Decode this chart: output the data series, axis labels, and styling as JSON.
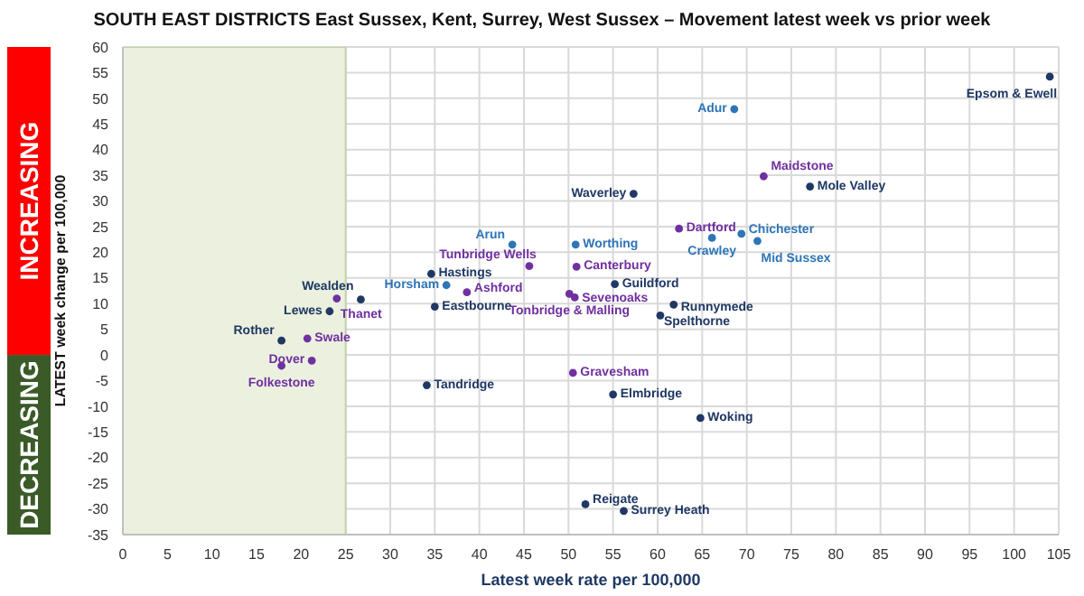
{
  "chart_data": {
    "type": "scatter",
    "title": "SOUTH EAST DISTRICTS East Sussex, Kent, Surrey, West Sussex – Movement latest week vs prior week",
    "xlabel": "Latest week rate per 100,000",
    "ylabel": "LATEST week change per 100,000",
    "xlim": [
      0,
      105
    ],
    "xticks": [
      0,
      5,
      10,
      15,
      20,
      25,
      30,
      35,
      40,
      45,
      50,
      55,
      60,
      65,
      70,
      75,
      80,
      85,
      90,
      95,
      100,
      105
    ],
    "ylim": [
      -35,
      60
    ],
    "yticks": [
      -35,
      -30,
      -25,
      -20,
      -15,
      -10,
      -5,
      0,
      5,
      10,
      15,
      20,
      25,
      30,
      35,
      40,
      45,
      50,
      55,
      60
    ],
    "grid": true,
    "marker": "circle",
    "bands": [
      {
        "axis": "x",
        "from": 0,
        "to": 25,
        "color": "#ebf1de"
      }
    ],
    "series": [
      {
        "color": "#1f3864",
        "x": [
          34.6,
          35.0,
          26.7,
          23.2,
          17.8
        ],
        "values": [
          15.8,
          9.4,
          10.8,
          8.5,
          2.8
        ]
      },
      {
        "color": "#7030a0",
        "x": [
          71.9,
          62.4,
          45.6,
          50.9,
          38.6,
          50.7,
          50.1,
          24.0,
          20.7,
          21.2,
          17.8,
          50.5
        ],
        "values": [
          34.8,
          24.6,
          17.3,
          17.2,
          12.2,
          11.2,
          11.9,
          11.0,
          3.2,
          -1.1,
          -2.1,
          -3.5
        ]
      },
      {
        "color": "#1f3864",
        "x": [
          104.0,
          77.1,
          57.3,
          55.2,
          61.8,
          60.3,
          34.1,
          55.0,
          64.8,
          51.9,
          56.2
        ],
        "values": [
          54.2,
          32.8,
          31.4,
          13.8,
          9.8,
          7.7,
          -5.9,
          -7.7,
          -12.3,
          -29.1,
          -30.4
        ]
      },
      {
        "color": "#2e75b6",
        "x": [
          68.6,
          69.4,
          66.1,
          71.2,
          43.7,
          50.8,
          36.3
        ],
        "values": [
          47.9,
          23.6,
          22.8,
          22.2,
          21.5,
          21.5,
          13.6
        ]
      }
    ],
    "annotations": [
      "INCREASING",
      "DECREASING",
      {
        "text": "Hastings",
        "x": 34.6,
        "y": 15.8
      },
      {
        "text": "Eastbourne",
        "x": 35.0,
        "y": 9.4
      },
      {
        "text": "Wealden",
        "x": 26.7,
        "y": 10.8
      },
      {
        "text": "Lewes",
        "x": 23.2,
        "y": 8.5
      },
      {
        "text": "Rother",
        "x": 17.8,
        "y": 2.8
      },
      {
        "text": "Maidstone",
        "x": 71.9,
        "y": 34.8
      },
      {
        "text": "Dartford",
        "x": 62.4,
        "y": 24.6
      },
      {
        "text": "Tunbridge Wells",
        "x": 45.6,
        "y": 17.3
      },
      {
        "text": "Canterbury",
        "x": 50.9,
        "y": 17.2
      },
      {
        "text": "Ashford",
        "x": 38.6,
        "y": 12.2
      },
      {
        "text": "Sevenoaks",
        "x": 50.7,
        "y": 11.2
      },
      {
        "text": "Tonbridge & Malling",
        "x": 50.1,
        "y": 11.9
      },
      {
        "text": "Thanet",
        "x": 24.0,
        "y": 11.0
      },
      {
        "text": "Swale",
        "x": 20.7,
        "y": 3.2
      },
      {
        "text": "Dover",
        "x": 21.2,
        "y": -1.1
      },
      {
        "text": "Folkestone",
        "x": 17.8,
        "y": -2.1
      },
      {
        "text": "Gravesham",
        "x": 50.5,
        "y": -3.5
      },
      {
        "text": "Epsom & Ewell",
        "x": 104.0,
        "y": 54.2
      },
      {
        "text": "Mole Valley",
        "x": 77.1,
        "y": 32.8
      },
      {
        "text": "Waverley",
        "x": 57.3,
        "y": 31.4
      },
      {
        "text": "Guildford",
        "x": 55.2,
        "y": 13.8
      },
      {
        "text": "Runnymede",
        "x": 61.8,
        "y": 9.8
      },
      {
        "text": "Spelthorne",
        "x": 60.3,
        "y": 7.7
      },
      {
        "text": "Tandridge",
        "x": 34.1,
        "y": -5.9
      },
      {
        "text": "Elmbridge",
        "x": 55.0,
        "y": -7.7
      },
      {
        "text": "Woking",
        "x": 64.8,
        "y": -12.3
      },
      {
        "text": "Reigate",
        "x": 51.9,
        "y": -29.1
      },
      {
        "text": "Surrey Heath",
        "x": 56.2,
        "y": -30.4
      },
      {
        "text": "Adur",
        "x": 68.6,
        "y": 47.9
      },
      {
        "text": "Chichester",
        "x": 69.4,
        "y": 23.6
      },
      {
        "text": "Crawley",
        "x": 66.1,
        "y": 22.8
      },
      {
        "text": "Mid Sussex",
        "x": 71.2,
        "y": 22.2
      },
      {
        "text": "Arun",
        "x": 43.7,
        "y": 21.5
      },
      {
        "text": "Worthing",
        "x": 50.8,
        "y": 21.5
      },
      {
        "text": "Horsham",
        "x": 36.3,
        "y": 13.6
      }
    ]
  }
}
